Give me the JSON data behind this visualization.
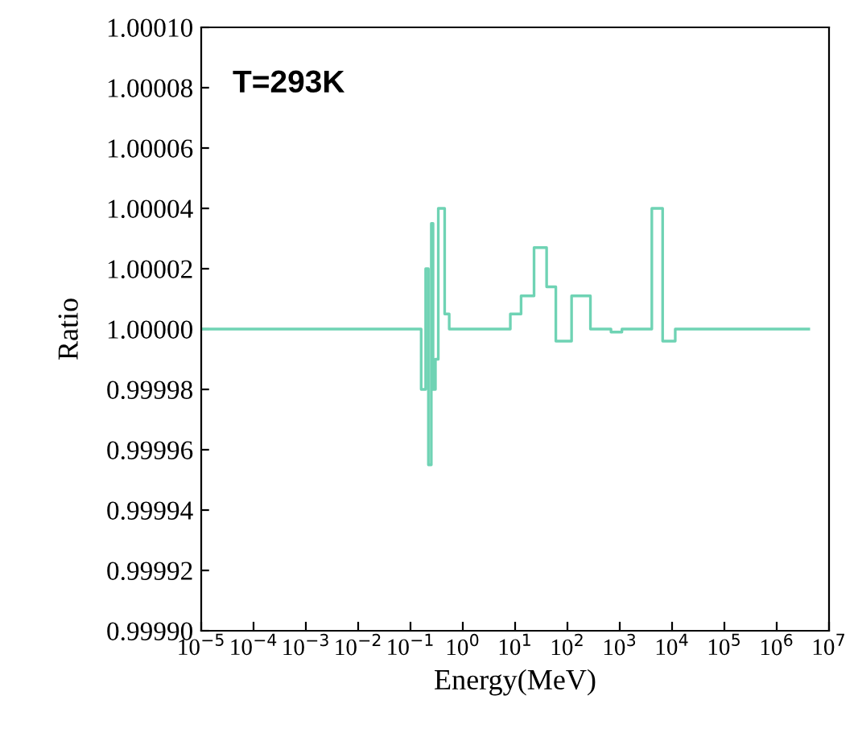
{
  "chart_data": {
    "type": "step",
    "xlabel": "Energy(MeV)",
    "ylabel": "Ratio",
    "log": "x",
    "annotations": [
      "T=293K"
    ],
    "x": [
      1e-05,
      0.16,
      0.195,
      0.22,
      0.25,
      0.27,
      0.3,
      0.34,
      0.45,
      0.55,
      8.1,
      13,
      23,
      40,
      60,
      120,
      275,
      680,
      1100,
      4100,
      6600,
      11500,
      4100000
    ],
    "series": [
      {
        "color": "#6fd3b4",
        "values": [
          1.0,
          0.99998,
          1.00002,
          0.999955,
          1.000035,
          0.99998,
          0.99999,
          1.00004,
          1.000005,
          1.0,
          1.000005,
          1.000011,
          1.000027,
          1.000014,
          0.999996,
          1.000011,
          1.0,
          0.999999,
          1.0,
          1.00004,
          0.999996,
          1.0,
          1.0
        ]
      }
    ],
    "xlim": [
      1e-05,
      10000000.0
    ],
    "xticks": [
      {
        "value": 1e-05,
        "label": "10$^{−5}$"
      },
      {
        "value": 0.0001,
        "label": "10$^{−4}$"
      },
      {
        "value": 0.001,
        "label": "10$^{−3}$"
      },
      {
        "value": 0.01,
        "label": "10$^{−2}$"
      },
      {
        "value": 0.1,
        "label": "10$^{−1}$"
      },
      {
        "value": 1,
        "label": "10$^{0}$"
      },
      {
        "value": 10,
        "label": "10$^{1}$"
      },
      {
        "value": 100,
        "label": "10$^{2}$"
      },
      {
        "value": 1000,
        "label": "10$^{3}$"
      },
      {
        "value": 10000,
        "label": "10$^{4}$"
      },
      {
        "value": 100000,
        "label": "10$^{5}$"
      },
      {
        "value": 1000000,
        "label": "10$^{6}$"
      },
      {
        "value": 10000000,
        "label": "10$^{7}$"
      }
    ],
    "ylim": [
      0.9999,
      1.0001
    ],
    "yticks": [
      {
        "value": 0.9999,
        "label": "0.99990"
      },
      {
        "value": 0.99992,
        "label": "0.99992"
      },
      {
        "value": 0.99994,
        "label": "0.99994"
      },
      {
        "value": 0.99996,
        "label": "0.99996"
      },
      {
        "value": 0.99998,
        "label": "0.99998"
      },
      {
        "value": 1.0,
        "label": "1.00000"
      },
      {
        "value": 1.00002,
        "label": "1.00002"
      },
      {
        "value": 1.00004,
        "label": "1.00004"
      },
      {
        "value": 1.00006,
        "label": "1.00006"
      },
      {
        "value": 1.00008,
        "label": "1.00008"
      },
      {
        "value": 1.0001,
        "label": "1.00010"
      }
    ],
    "grid": false,
    "legend": false
  }
}
